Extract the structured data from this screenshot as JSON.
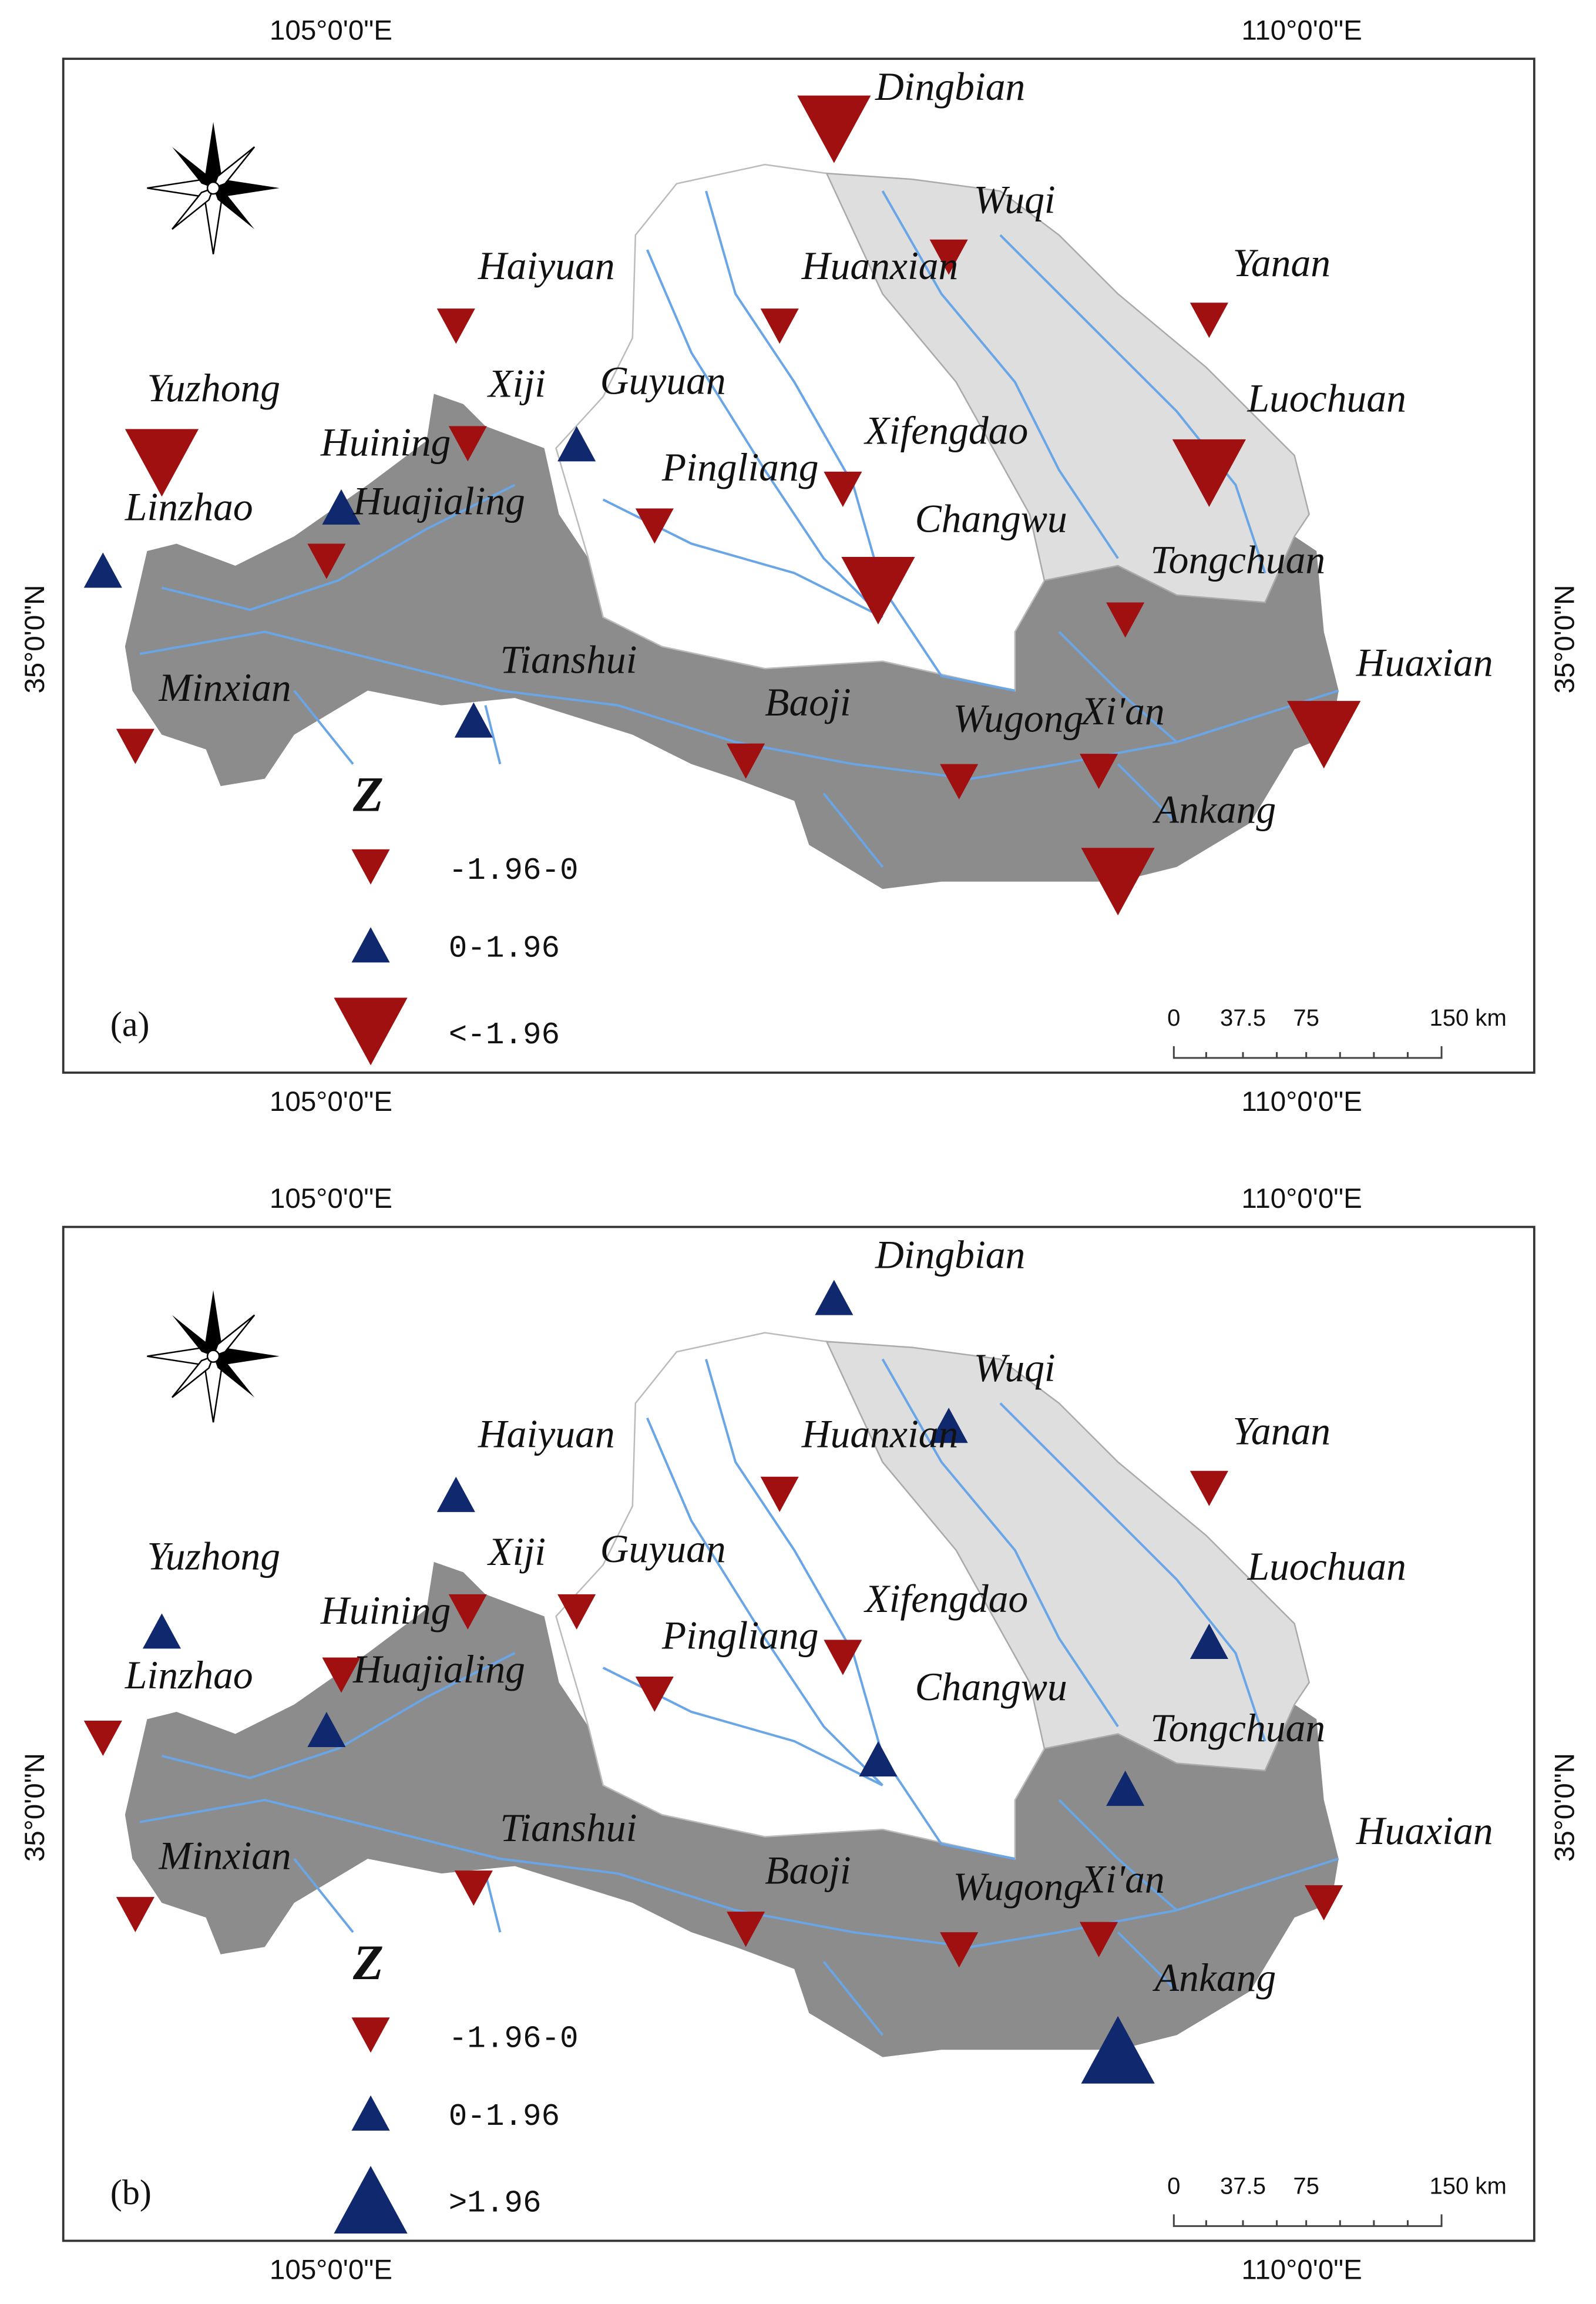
{
  "panels": [
    {
      "label": "(a)",
      "lon_labels": [
        "105°0'0\"E",
        "110°0'0\"E"
      ],
      "lat_label": "35°0'0\"N",
      "legend_title": "Z",
      "legend": [
        {
          "label": "-1.96-0",
          "marker": "down",
          "size": "small",
          "color": "#a01010"
        },
        {
          "label": "0-1.96",
          "marker": "up",
          "size": "small",
          "color": "#10286e"
        },
        {
          "label": "<-1.96",
          "marker": "down",
          "size": "large",
          "color": "#a01010"
        }
      ],
      "scale_labels": [
        "0",
        "37.5",
        "75",
        "150 km"
      ],
      "stations": [
        {
          "name": "Dingbian",
          "class": "<-1.96"
        },
        {
          "name": "Wuqi",
          "class": "-1.96-0"
        },
        {
          "name": "Haiyuan",
          "class": "-1.96-0"
        },
        {
          "name": "Huanxian",
          "class": "-1.96-0"
        },
        {
          "name": "Yanan",
          "class": "-1.96-0"
        },
        {
          "name": "Yuzhong",
          "class": "<-1.96"
        },
        {
          "name": "Xiji",
          "class": "-1.96-0"
        },
        {
          "name": "Guyuan",
          "class": "0-1.96"
        },
        {
          "name": "Luochuan",
          "class": "<-1.96"
        },
        {
          "name": "Huining",
          "class": "0-1.96"
        },
        {
          "name": "Xifengdao",
          "class": "-1.96-0"
        },
        {
          "name": "Pingliang",
          "class": "-1.96-0"
        },
        {
          "name": "Linzhao",
          "class": "0-1.96"
        },
        {
          "name": "Huajialing",
          "class": "-1.96-0"
        },
        {
          "name": "Changwu",
          "class": "<-1.96"
        },
        {
          "name": "Tongchuan",
          "class": "-1.96-0"
        },
        {
          "name": "Tianshui",
          "class": "0-1.96"
        },
        {
          "name": "Huaxian",
          "class": "<-1.96"
        },
        {
          "name": "Minxian",
          "class": "-1.96-0"
        },
        {
          "name": "Baoji",
          "class": "-1.96-0"
        },
        {
          "name": "Wugong",
          "class": "-1.96-0"
        },
        {
          "name": "Xi'an",
          "class": "-1.96-0"
        },
        {
          "name": "Ankang",
          "class": "<-1.96"
        }
      ]
    },
    {
      "label": "(b)",
      "lon_labels": [
        "105°0'0\"E",
        "110°0'0\"E"
      ],
      "lat_label": "35°0'0\"N",
      "legend_title": "Z",
      "legend": [
        {
          "label": "-1.96-0",
          "marker": "down",
          "size": "small",
          "color": "#a01010"
        },
        {
          "label": "0-1.96",
          "marker": "up",
          "size": "small",
          "color": "#10286e"
        },
        {
          "label": ">1.96",
          "marker": "up",
          "size": "large",
          "color": "#10286e"
        }
      ],
      "scale_labels": [
        "0",
        "37.5",
        "75",
        "150 km"
      ],
      "stations": [
        {
          "name": "Dingbian",
          "class": "0-1.96"
        },
        {
          "name": "Wuqi",
          "class": "0-1.96"
        },
        {
          "name": "Haiyuan",
          "class": "0-1.96"
        },
        {
          "name": "Huanxian",
          "class": "-1.96-0"
        },
        {
          "name": "Yanan",
          "class": "-1.96-0"
        },
        {
          "name": "Yuzhong",
          "class": "0-1.96"
        },
        {
          "name": "Xiji",
          "class": "-1.96-0"
        },
        {
          "name": "Guyuan",
          "class": "-1.96-0"
        },
        {
          "name": "Luochuan",
          "class": "0-1.96"
        },
        {
          "name": "Huining",
          "class": "-1.96-0"
        },
        {
          "name": "Xifengdao",
          "class": "-1.96-0"
        },
        {
          "name": "Pingliang",
          "class": "-1.96-0"
        },
        {
          "name": "Linzhao",
          "class": "-1.96-0"
        },
        {
          "name": "Huajialing",
          "class": "0-1.96"
        },
        {
          "name": "Changwu",
          "class": "0-1.96"
        },
        {
          "name": "Tongchuan",
          "class": "0-1.96"
        },
        {
          "name": "Tianshui",
          "class": "-1.96-0"
        },
        {
          "name": "Huaxian",
          "class": "-1.96-0"
        },
        {
          "name": "Minxian",
          "class": "-1.96-0"
        },
        {
          "name": "Baoji",
          "class": "-1.96-0"
        },
        {
          "name": "Wugong",
          "class": "-1.96-0"
        },
        {
          "name": "Xi'an",
          "class": "-1.96-0"
        },
        {
          "name": "Ankang",
          "class": ">1.96"
        }
      ]
    }
  ]
}
